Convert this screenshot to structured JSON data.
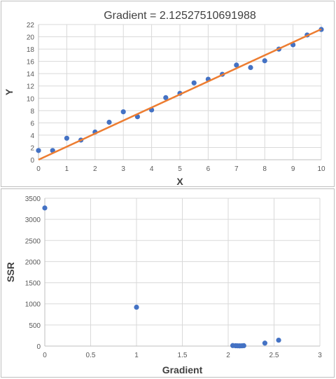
{
  "colors": {
    "marker": "#4472C4",
    "fit_line": "#ED7D31",
    "gridline": "#D9D9D9",
    "axis_line": "#BFBFBF",
    "text": "#595959"
  },
  "chart_data": [
    {
      "type": "scatter",
      "title": "Gradient = 2.12527510691988",
      "xlabel": "X",
      "ylabel": "Y",
      "xlim": [
        0,
        10
      ],
      "ylim": [
        0,
        22
      ],
      "x_ticks": [
        0,
        1,
        2,
        3,
        4,
        5,
        6,
        7,
        8,
        9,
        10
      ],
      "y_ticks": [
        0,
        2,
        4,
        6,
        8,
        10,
        12,
        14,
        16,
        18,
        20,
        22
      ],
      "grid": true,
      "series": [
        {
          "type": "scatter",
          "x": [
            0,
            0.5,
            1,
            1.5,
            2,
            2.5,
            3,
            3.5,
            4,
            4.5,
            5,
            5.5,
            6,
            6.5,
            7,
            7.5,
            8,
            8.5,
            9,
            9.5,
            10
          ],
          "y": [
            1.5,
            1.5,
            3.5,
            3.2,
            4.5,
            6.1,
            7.8,
            7.0,
            8.1,
            10.1,
            10.8,
            12.5,
            13.1,
            13.9,
            15.4,
            15.0,
            16.1,
            18.0,
            18.7,
            20.3,
            21.2
          ]
        },
        {
          "type": "line",
          "x": [
            0,
            10
          ],
          "y": [
            0,
            21.25
          ]
        }
      ]
    },
    {
      "type": "scatter",
      "title": "",
      "xlabel": "Gradient",
      "ylabel": "SSR",
      "xlim": [
        0,
        3
      ],
      "ylim": [
        0,
        3500
      ],
      "x_ticks": [
        0,
        0.5,
        1,
        1.5,
        2,
        2.5,
        3
      ],
      "y_ticks": [
        0,
        500,
        1000,
        1500,
        2000,
        2500,
        3000,
        3500
      ],
      "grid": true,
      "series": [
        {
          "type": "scatter",
          "x": [
            0,
            1,
            2.05,
            2.08,
            2.1,
            2.12,
            2.13,
            2.15,
            2.17,
            2.4,
            2.55
          ],
          "y": [
            3270,
            920,
            12,
            8,
            6,
            5,
            5,
            6,
            10,
            70,
            140
          ]
        }
      ]
    }
  ]
}
